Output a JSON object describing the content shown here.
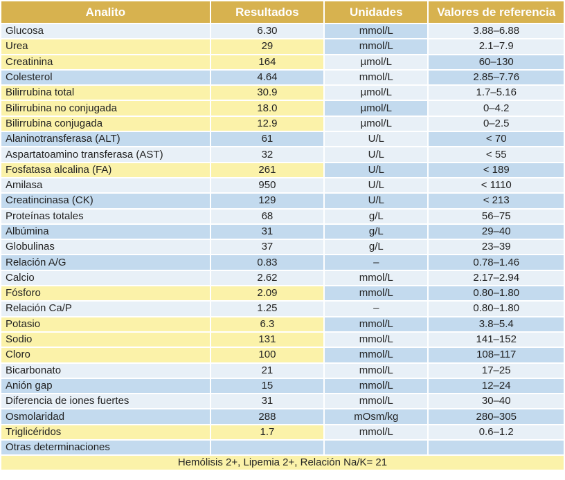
{
  "headers": [
    "Analito",
    "Resultados",
    "Unidades",
    "Valores de referencia"
  ],
  "rows": [
    {
      "analito": "Glucosa",
      "resultado": "6.30",
      "unidad": "mmol/L",
      "ref": "3.88–6.88",
      "colors": [
        "light",
        "light",
        "blue",
        "light"
      ]
    },
    {
      "analito": "Urea",
      "resultado": "29",
      "unidad": "mmol/L",
      "ref": "2.1–7.9",
      "colors": [
        "yellow",
        "yellow",
        "blue",
        "light"
      ]
    },
    {
      "analito": "Creatinina",
      "resultado": "164",
      "unidad": "µmol/L",
      "ref": "60–130",
      "colors": [
        "yellow",
        "yellow",
        "light",
        "blue"
      ]
    },
    {
      "analito": "Colesterol",
      "resultado": "4.64",
      "unidad": "mmol/L",
      "ref": "2.85–7.76",
      "colors": [
        "blue",
        "blue",
        "light",
        "blue"
      ]
    },
    {
      "analito": "Bilirrubina total",
      "resultado": "30.9",
      "unidad": "µmol/L",
      "ref": "1.7–5.16",
      "colors": [
        "yellow",
        "yellow",
        "light",
        "light"
      ]
    },
    {
      "analito": "Bilirrubina no conjugada",
      "resultado": "18.0",
      "unidad": "µmol/L",
      "ref": "0–4.2",
      "colors": [
        "yellow",
        "yellow",
        "blue",
        "light"
      ]
    },
    {
      "analito": "Bilirrubina conjugada",
      "resultado": "12.9",
      "unidad": "µmol/L",
      "ref": "0–2.5",
      "colors": [
        "yellow",
        "yellow",
        "light",
        "light"
      ]
    },
    {
      "analito": "Alaninotransferasa (ALT)",
      "resultado": "61",
      "unidad": "U/L",
      "ref": "< 70",
      "colors": [
        "blue",
        "blue",
        "light",
        "blue"
      ]
    },
    {
      "analito": "Aspartatoamino transferasa (AST)",
      "resultado": "32",
      "unidad": "U/L",
      "ref": "< 55",
      "colors": [
        "light",
        "light",
        "light",
        "light"
      ]
    },
    {
      "analito": "Fosfatasa alcalina (FA)",
      "resultado": "261",
      "unidad": "U/L",
      "ref": "< 189",
      "colors": [
        "yellow",
        "yellow",
        "blue",
        "blue"
      ]
    },
    {
      "analito": "Amilasa",
      "resultado": "950",
      "unidad": "U/L",
      "ref": "< 1110",
      "colors": [
        "light",
        "light",
        "light",
        "light"
      ]
    },
    {
      "analito": "Creatincinasa (CK)",
      "resultado": "129",
      "unidad": "U/L",
      "ref": "< 213",
      "colors": [
        "blue",
        "blue",
        "blue",
        "blue"
      ]
    },
    {
      "analito": "Proteínas totales",
      "resultado": "68",
      "unidad": "g/L",
      "ref": "56–75",
      "colors": [
        "light",
        "light",
        "light",
        "light"
      ]
    },
    {
      "analito": "Albúmina",
      "resultado": "31",
      "unidad": "g/L",
      "ref": "29–40",
      "colors": [
        "blue",
        "blue",
        "blue",
        "blue"
      ]
    },
    {
      "analito": "Globulinas",
      "resultado": "37",
      "unidad": "g/L",
      "ref": "23–39",
      "colors": [
        "light",
        "light",
        "light",
        "light"
      ]
    },
    {
      "analito": "Relación A/G",
      "resultado": "0.83",
      "unidad": "–",
      "ref": "0.78–1.46",
      "colors": [
        "blue",
        "blue",
        "blue",
        "blue"
      ]
    },
    {
      "analito": "Calcio",
      "resultado": "2.62",
      "unidad": "mmol/L",
      "ref": "2.17–2.94",
      "colors": [
        "light",
        "light",
        "light",
        "light"
      ]
    },
    {
      "analito": "Fósforo",
      "resultado": "2.09",
      "unidad": "mmol/L",
      "ref": "0.80–1.80",
      "colors": [
        "yellow",
        "yellow",
        "blue",
        "blue"
      ]
    },
    {
      "analito": "Relación Ca/P",
      "resultado": "1.25",
      "unidad": "–",
      "ref": "0.80–1.80",
      "colors": [
        "light",
        "light",
        "light",
        "light"
      ]
    },
    {
      "analito": "Potasio",
      "resultado": "6.3",
      "unidad": "mmol/L",
      "ref": "3.8–5.4",
      "colors": [
        "yellow",
        "yellow",
        "blue",
        "blue"
      ]
    },
    {
      "analito": "Sodio",
      "resultado": "131",
      "unidad": "mmol/L",
      "ref": "141–152",
      "colors": [
        "yellow",
        "yellow",
        "light",
        "light"
      ]
    },
    {
      "analito": "Cloro",
      "resultado": "100",
      "unidad": "mmol/L",
      "ref": "108–117",
      "colors": [
        "yellow",
        "yellow",
        "blue",
        "blue"
      ]
    },
    {
      "analito": "Bicarbonato",
      "resultado": "21",
      "unidad": "mmol/L",
      "ref": "17–25",
      "colors": [
        "light",
        "light",
        "light",
        "light"
      ]
    },
    {
      "analito": "Anión gap",
      "resultado": "15",
      "unidad": "mmol/L",
      "ref": "12–24",
      "colors": [
        "blue",
        "blue",
        "blue",
        "blue"
      ]
    },
    {
      "analito": "Diferencia de iones fuertes",
      "resultado": "31",
      "unidad": "mmol/L",
      "ref": "30–40",
      "colors": [
        "light",
        "light",
        "light",
        "light"
      ]
    },
    {
      "analito": "Osmolaridad",
      "resultado": "288",
      "unidad": "mOsm/kg",
      "ref": "280–305",
      "colors": [
        "blue",
        "blue",
        "blue",
        "blue"
      ]
    },
    {
      "analito": "Triglicéridos",
      "resultado": "1.7",
      "unidad": "mmol/L",
      "ref": "0.6–1.2",
      "colors": [
        "yellow",
        "yellow",
        "light",
        "light"
      ]
    },
    {
      "analito": "Otras determinaciones",
      "resultado": "",
      "unidad": "",
      "ref": "",
      "colors": [
        "blue",
        "blue",
        "blue",
        "blue"
      ]
    }
  ],
  "footer": "Hemólisis 2+, Lipemia 2+, Relación Na/K= 21",
  "colors": {
    "header": "#d7b24f",
    "light": "#e8f0f7",
    "blue": "#c3daee",
    "yellow": "#fbf2a9"
  }
}
